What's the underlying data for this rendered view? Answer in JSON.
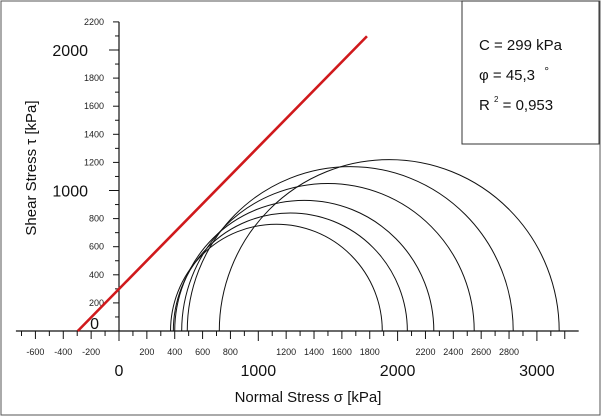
{
  "chart_data": {
    "type": "scatter",
    "xlabel": "Normal Stress σ [kPa]",
    "ylabel": "Shear Stress τ [kPa]",
    "xlim": [
      -740,
      3300
    ],
    "ylim": [
      0,
      2200
    ],
    "x_minor_tick_labels": [
      "-600",
      "-400",
      "-200",
      "200",
      "400",
      "600",
      "800",
      "1200",
      "1400",
      "1600",
      "1800",
      "2200",
      "2400",
      "2600",
      "2800"
    ],
    "x_major_tick_labels": [
      "0",
      "1000",
      "2000",
      "3000"
    ],
    "y_minor_tick_labels": [
      "200",
      "400",
      "600",
      "800",
      "1200",
      "1400",
      "1600",
      "1800",
      "2200"
    ],
    "y_major_tick_labels": [
      "0",
      "1000",
      "2000"
    ],
    "envelope": {
      "color": "#d0191c",
      "intercept": 299,
      "angle_deg": 45.3,
      "x_start": -296,
      "x_end": 1780
    },
    "mohr_circles": [
      {
        "center": 1130,
        "radius": 760
      },
      {
        "center": 1230,
        "radius": 840
      },
      {
        "center": 1330,
        "radius": 930
      },
      {
        "center": 1500,
        "radius": 1050
      },
      {
        "center": 1660,
        "radius": 1170
      },
      {
        "center": 1940,
        "radius": 1220
      }
    ],
    "legend": {
      "cohesion": "C = 299 kPa",
      "phi_label": "φ = 45,3",
      "phi_unit": "°",
      "r2_prefix": "R",
      "r2_sup": "2",
      "r2_value": "= 0,953",
      "placement": "top-right"
    }
  }
}
